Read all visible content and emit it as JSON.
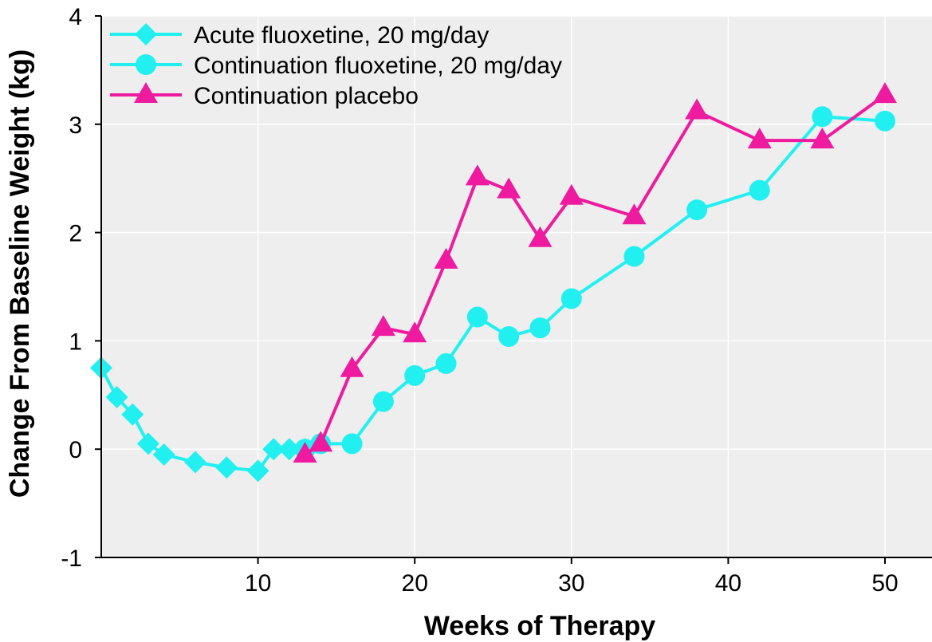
{
  "chart_data": {
    "type": "line",
    "title": "",
    "xlabel": "Weeks of Therapy",
    "ylabel": "Change From Baseline Weight (kg)",
    "xlim": [
      0,
      53
    ],
    "ylim": [
      -1,
      4
    ],
    "xticks": [
      10,
      20,
      30,
      40,
      50
    ],
    "yticks": [
      -1,
      0,
      1,
      2,
      3,
      4
    ],
    "grid": true,
    "legend_position": "top-left",
    "background": "#eeeeee",
    "series": [
      {
        "name": "Acute fluoxetine, 20 mg/day",
        "marker": "diamond",
        "color": "#22f0f0",
        "points": [
          [
            0,
            0.75
          ],
          [
            1,
            0.48
          ],
          [
            2,
            0.32
          ],
          [
            3,
            0.05
          ],
          [
            4,
            -0.05
          ],
          [
            6,
            -0.12
          ],
          [
            8,
            -0.17
          ],
          [
            10,
            -0.2
          ],
          [
            11,
            0.0
          ],
          [
            12,
            0.0
          ],
          [
            13,
            0.0
          ]
        ]
      },
      {
        "name": "Continuation fluoxetine, 20 mg/day",
        "marker": "circle",
        "color": "#22f0f0",
        "points": [
          [
            13,
            0.0
          ],
          [
            14,
            0.05
          ],
          [
            16,
            0.05
          ],
          [
            18,
            0.44
          ],
          [
            20,
            0.68
          ],
          [
            22,
            0.79
          ],
          [
            24,
            1.22
          ],
          [
            26,
            1.04
          ],
          [
            28,
            1.12
          ],
          [
            30,
            1.39
          ],
          [
            34,
            1.78
          ],
          [
            38,
            2.21
          ],
          [
            42,
            2.39
          ],
          [
            46,
            3.07
          ],
          [
            50,
            3.03
          ]
        ]
      },
      {
        "name": "Continuation placebo",
        "marker": "triangle",
        "color": "#ee1a9f",
        "points": [
          [
            13,
            -0.05
          ],
          [
            14,
            0.05
          ],
          [
            16,
            0.74
          ],
          [
            18,
            1.12
          ],
          [
            20,
            1.06
          ],
          [
            22,
            1.74
          ],
          [
            24,
            2.51
          ],
          [
            26,
            2.39
          ],
          [
            28,
            1.94
          ],
          [
            30,
            2.33
          ],
          [
            34,
            2.15
          ],
          [
            38,
            3.12
          ],
          [
            42,
            2.85
          ],
          [
            46,
            2.85
          ],
          [
            50,
            3.27
          ]
        ]
      }
    ]
  }
}
